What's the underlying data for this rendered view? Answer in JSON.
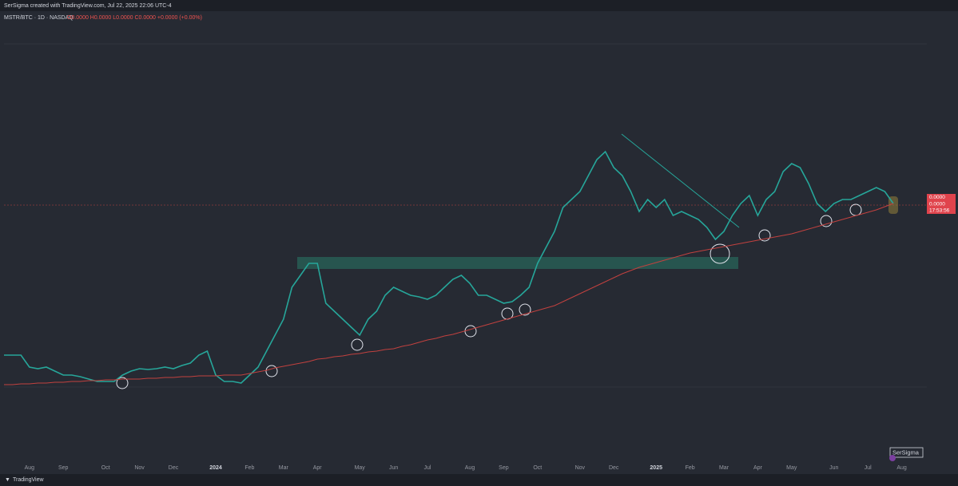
{
  "header": {
    "credit": "SerSigma created with TradingView.com, Jul 22, 2025 22:06 UTC-4",
    "symbol": "MSTR/BTC · 1D · NASDAQ",
    "ohlc": "O0.0000 H0.0000 L0.0000 C0.0000 +0.0000 (+0.00%)"
  },
  "price_scale": {
    "labels": [
      "0.0000",
      "0.0000",
      "17:53:56"
    ]
  },
  "watermark": "SerSigma",
  "footer": "TradingView",
  "chart_data": {
    "type": "line",
    "categories": [
      null,
      null,
      null,
      "Aug",
      null,
      null,
      null,
      "Sep",
      null,
      null,
      null,
      null,
      "Oct",
      null,
      null,
      null,
      "Nov",
      null,
      null,
      null,
      "Dec",
      null,
      null,
      null,
      null,
      "2024",
      null,
      null,
      null,
      "Feb",
      null,
      null,
      null,
      "Mar",
      null,
      null,
      null,
      "Apr",
      null,
      null,
      null,
      null,
      "May",
      null,
      null,
      null,
      "Jun",
      null,
      null,
      null,
      "Jul",
      null,
      null,
      null,
      null,
      "Aug",
      null,
      null,
      null,
      "Sep",
      null,
      null,
      null,
      "Oct",
      null,
      null,
      null,
      null,
      "Nov",
      null,
      null,
      null,
      "Dec",
      null,
      null,
      null,
      null,
      "2025",
      null,
      null,
      null,
      "Feb",
      null,
      null,
      null,
      "Mar",
      null,
      null,
      null,
      "Apr",
      null,
      null,
      null,
      "May",
      null,
      null,
      null,
      null,
      "Jun",
      null,
      null,
      null,
      "Jul",
      null,
      null,
      null,
      "Aug"
    ],
    "series": [
      {
        "color": "#26a69a",
        "values": [
          140,
          140,
          140,
          125,
          123,
          125,
          120,
          115,
          115,
          113,
          110,
          107,
          107,
          107,
          115,
          120,
          123,
          122,
          123,
          125,
          123,
          127,
          130,
          140,
          145,
          115,
          107,
          107,
          105,
          115,
          125,
          145,
          165,
          185,
          225,
          240,
          255,
          255,
          205,
          195,
          185,
          175,
          165,
          185,
          195,
          215,
          225,
          220,
          215,
          213,
          210,
          215,
          225,
          235,
          240,
          230,
          215,
          215,
          210,
          205,
          207,
          215,
          225,
          255,
          275,
          295,
          325,
          335,
          345,
          365,
          385,
          395,
          375,
          365,
          345,
          320,
          335,
          325,
          335,
          315,
          320,
          315,
          310,
          300,
          285,
          295,
          315,
          330,
          340,
          315,
          335,
          345,
          370,
          380,
          375,
          355,
          330,
          320,
          330,
          335,
          335,
          340,
          345,
          350,
          345,
          330,
          null
        ]
      },
      {
        "color": "#c2413f",
        "values": [
          103,
          103,
          104,
          104,
          105,
          105,
          106,
          106,
          107,
          107,
          108,
          108,
          109,
          109,
          110,
          110,
          110,
          111,
          111,
          112,
          112,
          113,
          113,
          114,
          114,
          114,
          115,
          115,
          115,
          117,
          119,
          121,
          124,
          126,
          128,
          130,
          132,
          135,
          136,
          138,
          139,
          141,
          142,
          144,
          145,
          147,
          148,
          151,
          153,
          156,
          159,
          161,
          164,
          166,
          169,
          172,
          175,
          178,
          181,
          184,
          187,
          190,
          193,
          196,
          199,
          202,
          207,
          212,
          217,
          222,
          227,
          232,
          237,
          242,
          246,
          250,
          253,
          256,
          259,
          262,
          265,
          268,
          270,
          272,
          274,
          276,
          278,
          280,
          282,
          284,
          286,
          288,
          290,
          292,
          295,
          298,
          301,
          304,
          307,
          310,
          313,
          316,
          319,
          322,
          326,
          330,
          null
        ]
      }
    ],
    "ylim": [
      0,
      575
    ]
  }
}
